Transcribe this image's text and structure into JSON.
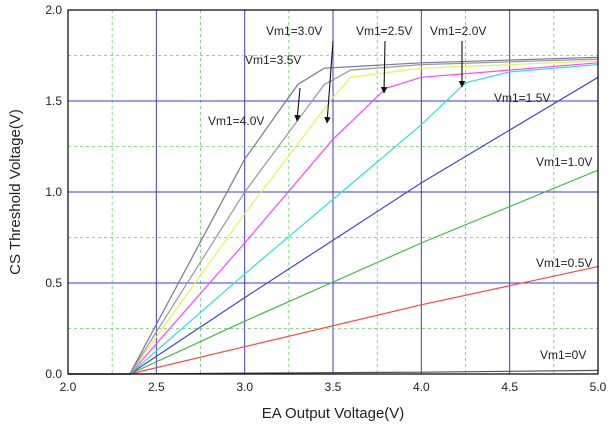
{
  "chart_data": {
    "type": "line",
    "xlabel": "EA Output Voltage(V)",
    "ylabel": "CS Threshold Voltage(V)",
    "xlim": [
      2.0,
      5.0
    ],
    "ylim": [
      0.0,
      2.0
    ],
    "x_ticks": [
      "2.0",
      "2.5",
      "3.0",
      "3.5",
      "4.0",
      "4.5",
      "5.0"
    ],
    "y_ticks": [
      "0.0",
      "0.5",
      "1.0",
      "1.5",
      "2.0"
    ],
    "grid": "on",
    "series": [
      {
        "name": "Vm1=0V",
        "color": "#555555",
        "x": [
          2.0,
          2.35,
          3.0,
          4.0,
          5.0
        ],
        "y": [
          0.0,
          0.0,
          0.005,
          0.01,
          0.02
        ]
      },
      {
        "name": "Vm1=0.5V",
        "color": "#ff4444",
        "x": [
          2.0,
          2.35,
          3.0,
          4.0,
          5.0
        ],
        "y": [
          0.0,
          0.0,
          0.15,
          0.38,
          0.59
        ]
      },
      {
        "name": "Vm1=1.0V",
        "color": "#44bb44",
        "x": [
          2.0,
          2.35,
          3.0,
          4.0,
          5.0
        ],
        "y": [
          0.0,
          0.0,
          0.29,
          0.72,
          1.12
        ]
      },
      {
        "name": "Vm1=1.5V",
        "color": "#4444cc",
        "x": [
          2.0,
          2.35,
          3.0,
          4.0,
          5.0
        ],
        "y": [
          0.0,
          0.0,
          0.42,
          1.05,
          1.63
        ]
      },
      {
        "name": "Vm1=2.0V",
        "color": "#33dddd",
        "x": [
          2.0,
          2.35,
          3.0,
          4.0,
          4.25,
          4.5,
          5.0
        ],
        "y": [
          0.0,
          0.0,
          0.55,
          1.37,
          1.6,
          1.66,
          1.7
        ]
      },
      {
        "name": "Vm1=2.5V",
        "color": "#ff44ff",
        "x": [
          2.0,
          2.35,
          3.0,
          3.5,
          3.8,
          4.0,
          5.0
        ],
        "y": [
          0.0,
          0.0,
          0.72,
          1.29,
          1.57,
          1.63,
          1.71
        ]
      },
      {
        "name": "Vm1=3.0V",
        "color": "#eeee55",
        "x": [
          2.0,
          2.35,
          3.0,
          3.5,
          3.6,
          4.0,
          5.0
        ],
        "y": [
          0.0,
          0.0,
          0.88,
          1.52,
          1.63,
          1.68,
          1.72
        ]
      },
      {
        "name": "Vm1=3.5V",
        "color": "#999999",
        "x": [
          2.0,
          2.35,
          3.0,
          3.45,
          3.6,
          4.0,
          5.0
        ],
        "y": [
          0.0,
          0.0,
          1.0,
          1.59,
          1.67,
          1.7,
          1.73
        ]
      },
      {
        "name": "Vm1=4.0V",
        "color": "#777799",
        "x": [
          2.0,
          2.35,
          3.0,
          3.3,
          3.45,
          4.0,
          5.0
        ],
        "y": [
          0.0,
          0.0,
          1.18,
          1.59,
          1.68,
          1.71,
          1.74
        ]
      }
    ],
    "annotations": [
      {
        "text": "Vm1=0V",
        "series": "Vm1=0V"
      },
      {
        "text": "Vm1=0.5V",
        "series": "Vm1=0.5V"
      },
      {
        "text": "Vm1=1.0V",
        "series": "Vm1=1.0V"
      },
      {
        "text": "Vm1=1.5V",
        "series": "Vm1=1.5V"
      },
      {
        "text": "Vm1=2.0V",
        "series": "Vm1=2.0V",
        "arrow": true
      },
      {
        "text": "Vm1=2.5V",
        "series": "Vm1=2.5V",
        "arrow": true
      },
      {
        "text": "Vm1=3.0V",
        "series": "Vm1=3.0V",
        "arrow": true
      },
      {
        "text": "Vm1=3.5V",
        "series": "Vm1=3.5V"
      },
      {
        "text": "Vm1=4.0V",
        "series": "Vm1=4.0V",
        "arrow": true
      }
    ]
  }
}
